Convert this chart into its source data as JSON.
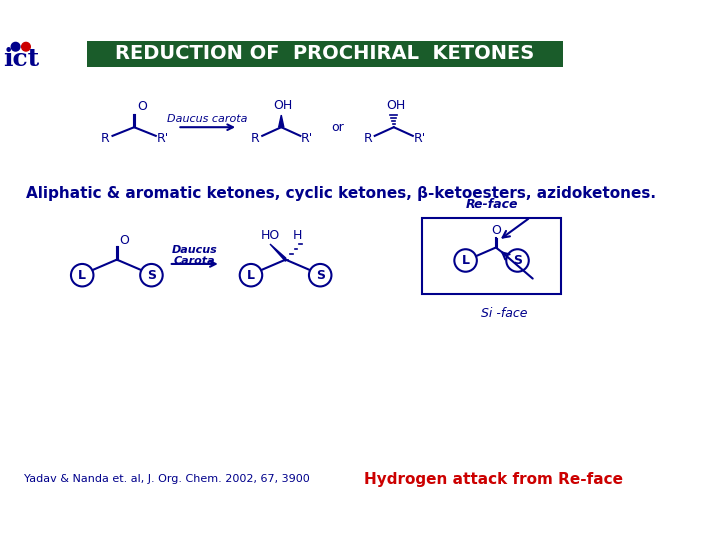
{
  "title": "REDUCTION OF  PROCHIRAL  KETONES",
  "title_bg_color": "#1a5c2a",
  "title_text_color": "#ffffff",
  "slide_bg_color": "#ffffff",
  "blue_color": "#00008B",
  "red_color": "#cc0000",
  "subtitle_text": "Aliphatic & aromatic ketones, cyclic ketones, β-ketoesters, azidoketones.",
  "citation_text": "Yadav & Nanda et. al, J. Org. Chem. 2002, 67, 3900",
  "highlight_text": "Hydrogen attack from Re-face",
  "reface_label": "Re-face",
  "siface_label": "Si -face",
  "daucus_label1": "Daucus carota",
  "or_text": "or",
  "OH_text": "OH",
  "O_text": "O",
  "HO_text": "HO",
  "H_text": "H",
  "R_text": "R",
  "Rprime_text": "R'",
  "L_text": "L",
  "S_text": "S",
  "iit_blue": "#00008B",
  "iit_red": "#cc0000"
}
